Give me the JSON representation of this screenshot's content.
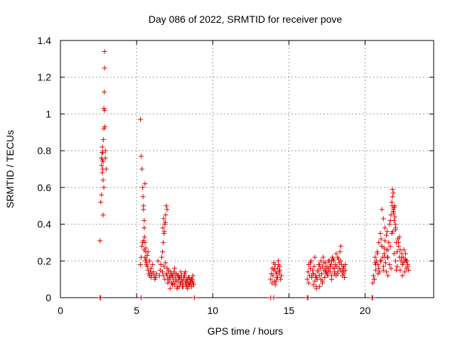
{
  "chart_data": {
    "type": "scatter",
    "title": "Day 086 of 2022, SRMTID for receiver pove",
    "xlabel": "GPS time / hours",
    "ylabel": "SRMTID / TECUs",
    "xlim": [
      0,
      24.5
    ],
    "ylim": [
      0,
      1.4
    ],
    "xticks": [
      "0",
      "5",
      "10",
      "15",
      "20"
    ],
    "xtick_values": [
      0,
      5,
      10,
      15,
      20
    ],
    "yticks": [
      "0",
      "0.2",
      "0.4",
      "0.6",
      "0.8",
      "1",
      "1.2",
      "1.4"
    ],
    "ytick_values": [
      0,
      0.2,
      0.4,
      0.6,
      0.8,
      1.0,
      1.2,
      1.4
    ],
    "grid": true,
    "marker": "+",
    "color": "#e00000",
    "series": [
      {
        "x": [
          2.6,
          2.65,
          2.7,
          2.7,
          2.72,
          2.75,
          2.75,
          2.78,
          2.8,
          2.8,
          2.82,
          2.85,
          2.85,
          2.88,
          2.9,
          2.9,
          2.92,
          2.95,
          2.95,
          3.0,
          2.75,
          2.8,
          2.85,
          2.7,
          2.78,
          2.9,
          5.25,
          5.3,
          5.35,
          5.4,
          5.42,
          5.45,
          5.5,
          5.5,
          5.52,
          5.55,
          5.6,
          5.6,
          5.62,
          5.65,
          5.7,
          5.75,
          5.8,
          5.85,
          5.9,
          5.95,
          6.0,
          5.35,
          5.4,
          5.45,
          5.5,
          5.55,
          5.6,
          5.65,
          5.7,
          5.3,
          5.25,
          5.45,
          5.55,
          5.75,
          5.85,
          5.95,
          6.05,
          6.1,
          6.15,
          6.2,
          6.25,
          6.3,
          6.4,
          6.5,
          6.55,
          6.6,
          6.65,
          6.7,
          6.75,
          6.8,
          6.85,
          6.9,
          6.95,
          7.0,
          6.7,
          6.75,
          6.8,
          6.85,
          6.9,
          6.95,
          7.0,
          6.72,
          6.78,
          6.82,
          6.88,
          7.0,
          7.05,
          7.1,
          7.15,
          7.2,
          7.25,
          7.3,
          7.35,
          7.4,
          7.45,
          7.5,
          7.55,
          7.6,
          7.65,
          7.7,
          7.75,
          7.8,
          7.85,
          7.9,
          7.95,
          8.0,
          8.05,
          8.1,
          8.15,
          8.2,
          8.25,
          8.3,
          8.35,
          8.4,
          8.45,
          8.5,
          8.55,
          8.6,
          8.65,
          8.7,
          8.75,
          7.05,
          7.15,
          7.25,
          7.35,
          7.45,
          7.55,
          7.65,
          7.75,
          7.85,
          7.95,
          8.05,
          8.15,
          8.25,
          8.35,
          8.45,
          8.55,
          8.65,
          7.1,
          7.3,
          7.5,
          7.7,
          7.9,
          8.1,
          8.3,
          8.5,
          8.7,
          7.2,
          7.4,
          7.6,
          7.8,
          8.0,
          8.2,
          8.4,
          8.6,
          13.8,
          13.85,
          13.9,
          13.95,
          14.0,
          14.05,
          14.1,
          14.15,
          14.2,
          14.25,
          14.3,
          14.35,
          14.4,
          14.45,
          14.5,
          13.9,
          14.0,
          14.1,
          14.2,
          14.3,
          14.4,
          14.15,
          14.25,
          14.35,
          14.05,
          16.2,
          16.25,
          16.3,
          16.35,
          16.4,
          16.45,
          16.5,
          16.55,
          16.6,
          16.65,
          16.7,
          16.75,
          16.8,
          16.85,
          16.9,
          16.95,
          17.0,
          17.05,
          17.1,
          17.15,
          17.2,
          17.25,
          17.3,
          17.35,
          17.4,
          17.45,
          17.5,
          17.55,
          17.6,
          17.65,
          17.7,
          17.75,
          17.8,
          17.85,
          17.9,
          17.95,
          18.0,
          18.05,
          18.1,
          18.15,
          18.2,
          18.25,
          18.3,
          18.35,
          18.4,
          18.45,
          18.5,
          18.55,
          18.6,
          18.65,
          18.7,
          16.3,
          16.5,
          16.7,
          16.9,
          17.1,
          17.3,
          17.5,
          17.7,
          17.9,
          18.1,
          18.3,
          18.5,
          18.7,
          16.4,
          16.6,
          16.8,
          17.0,
          17.2,
          17.4,
          17.6,
          17.8,
          18.0,
          18.2,
          18.4,
          18.6,
          16.8,
          17.2,
          17.6,
          18.0,
          18.4,
          16.6,
          17.0,
          17.4,
          17.8,
          18.2,
          18.6,
          20.5,
          20.55,
          20.6,
          20.65,
          20.7,
          20.75,
          20.8,
          20.85,
          20.9,
          20.95,
          21.0,
          21.05,
          21.1,
          21.15,
          21.2,
          21.25,
          21.3,
          21.35,
          21.4,
          21.45,
          21.5,
          21.55,
          21.6,
          21.65,
          21.7,
          21.75,
          21.8,
          21.85,
          21.9,
          21.95,
          22.0,
          22.05,
          22.1,
          22.15,
          22.2,
          22.25,
          22.3,
          22.35,
          22.4,
          22.45,
          22.5,
          22.55,
          22.6,
          22.65,
          22.7,
          22.75,
          22.8,
          22.85,
          20.6,
          20.7,
          20.8,
          20.9,
          21.0,
          21.1,
          21.2,
          21.3,
          21.4,
          21.5,
          21.6,
          21.7,
          21.8,
          21.9,
          22.0,
          22.1,
          22.2,
          22.3,
          22.4,
          22.5,
          22.6,
          22.7,
          22.8,
          20.65,
          20.85,
          21.05,
          21.25,
          21.45,
          21.65,
          21.85,
          22.05,
          22.25,
          22.45,
          22.65,
          21.75,
          21.8,
          21.85,
          21.9,
          21.95,
          22.0,
          21.78,
          21.88,
          21.98,
          21.1,
          21.2,
          21.3,
          21.4,
          21.5,
          2.6,
          2.65,
          5.3,
          13.8,
          14.0,
          16.2,
          16.25,
          20.45,
          20.5,
          8.8
        ],
        "y": [
          0.31,
          0.52,
          0.56,
          0.72,
          0.79,
          0.75,
          0.68,
          0.7,
          0.45,
          0.64,
          0.86,
          0.92,
          1.03,
          1.12,
          1.25,
          1.34,
          0.93,
          0.8,
          0.76,
          0.7,
          0.82,
          0.74,
          0.6,
          0.76,
          0.79,
          1.02,
          0.97,
          0.77,
          0.7,
          0.6,
          0.55,
          0.5,
          0.42,
          0.38,
          0.33,
          0.3,
          0.27,
          0.25,
          0.21,
          0.18,
          0.17,
          0.15,
          0.13,
          0.12,
          0.14,
          0.11,
          0.13,
          0.28,
          0.3,
          0.31,
          0.26,
          0.22,
          0.2,
          0.19,
          0.23,
          0.22,
          0.18,
          0.48,
          0.62,
          0.25,
          0.2,
          0.16,
          0.18,
          0.14,
          0.12,
          0.1,
          0.11,
          0.13,
          0.2,
          0.12,
          0.15,
          0.18,
          0.22,
          0.25,
          0.3,
          0.35,
          0.4,
          0.45,
          0.5,
          0.48,
          0.14,
          0.12,
          0.17,
          0.1,
          0.19,
          0.13,
          0.16,
          0.38,
          0.43,
          0.36,
          0.41,
          0.12,
          0.1,
          0.14,
          0.09,
          0.11,
          0.13,
          0.08,
          0.12,
          0.1,
          0.14,
          0.07,
          0.11,
          0.13,
          0.09,
          0.12,
          0.1,
          0.06,
          0.11,
          0.08,
          0.12,
          0.09,
          0.07,
          0.1,
          0.12,
          0.08,
          0.06,
          0.1,
          0.09,
          0.11,
          0.07,
          0.08,
          0.1,
          0.06,
          0.09,
          0.08,
          0.07,
          0.08,
          0.11,
          0.14,
          0.07,
          0.13,
          0.09,
          0.05,
          0.12,
          0.08,
          0.1,
          0.06,
          0.13,
          0.09,
          0.05,
          0.11,
          0.08,
          0.1,
          0.15,
          0.12,
          0.16,
          0.06,
          0.14,
          0.11,
          0.07,
          0.09,
          0.12,
          0.05,
          0.08,
          0.13,
          0.11,
          0.06,
          0.14,
          0.07,
          0.1,
          0.1,
          0.13,
          0.08,
          0.12,
          0.15,
          0.09,
          0.18,
          0.14,
          0.11,
          0.16,
          0.2,
          0.13,
          0.17,
          0.1,
          0.12,
          0.16,
          0.19,
          0.07,
          0.13,
          0.18,
          0.15,
          0.09,
          0.11,
          0.14,
          0.16,
          0.1,
          0.14,
          0.18,
          0.12,
          0.16,
          0.2,
          0.11,
          0.15,
          0.13,
          0.17,
          0.09,
          0.12,
          0.06,
          0.1,
          0.14,
          0.18,
          0.12,
          0.16,
          0.2,
          0.13,
          0.17,
          0.22,
          0.15,
          0.11,
          0.19,
          0.14,
          0.17,
          0.12,
          0.16,
          0.2,
          0.14,
          0.18,
          0.12,
          0.22,
          0.16,
          0.2,
          0.14,
          0.18,
          0.24,
          0.17,
          0.13,
          0.21,
          0.19,
          0.25,
          0.15,
          0.18,
          0.12,
          0.16,
          0.14,
          0.11,
          0.15,
          0.08,
          0.12,
          0.22,
          0.15,
          0.1,
          0.19,
          0.13,
          0.17,
          0.21,
          0.12,
          0.16,
          0.14,
          0.18,
          0.19,
          0.07,
          0.11,
          0.18,
          0.09,
          0.14,
          0.2,
          0.1,
          0.16,
          0.22,
          0.2,
          0.13,
          0.05,
          0.08,
          0.15,
          0.13,
          0.28,
          0.13,
          0.06,
          0.16,
          0.2,
          0.14,
          0.17,
          0.08,
          0.12,
          0.1,
          0.22,
          0.15,
          0.2,
          0.25,
          0.18,
          0.3,
          0.14,
          0.35,
          0.2,
          0.28,
          0.22,
          0.17,
          0.24,
          0.31,
          0.19,
          0.26,
          0.36,
          0.22,
          0.3,
          0.4,
          0.28,
          0.45,
          0.35,
          0.55,
          0.48,
          0.42,
          0.5,
          0.37,
          0.3,
          0.25,
          0.32,
          0.28,
          0.22,
          0.26,
          0.2,
          0.24,
          0.18,
          0.22,
          0.26,
          0.2,
          0.24,
          0.16,
          0.2,
          0.18,
          0.15,
          0.1,
          0.18,
          0.24,
          0.16,
          0.2,
          0.28,
          0.15,
          0.22,
          0.14,
          0.26,
          0.18,
          0.16,
          0.36,
          0.24,
          0.2,
          0.17,
          0.3,
          0.15,
          0.22,
          0.19,
          0.14,
          0.2,
          0.17,
          0.19,
          0.13,
          0.32,
          0.27,
          0.22,
          0.42,
          0.47,
          0.15,
          0.33,
          0.12,
          0.21,
          0.52,
          0.59,
          0.57,
          0.49,
          0.44,
          0.38,
          0.5,
          0.46,
          0.4,
          0.48,
          0.43,
          0.38,
          0.34,
          0.12,
          0.0,
          0.0,
          0.0,
          0.0,
          0.0,
          0.0,
          0.0,
          0.0,
          0.0,
          0.0
        ]
      }
    ]
  }
}
